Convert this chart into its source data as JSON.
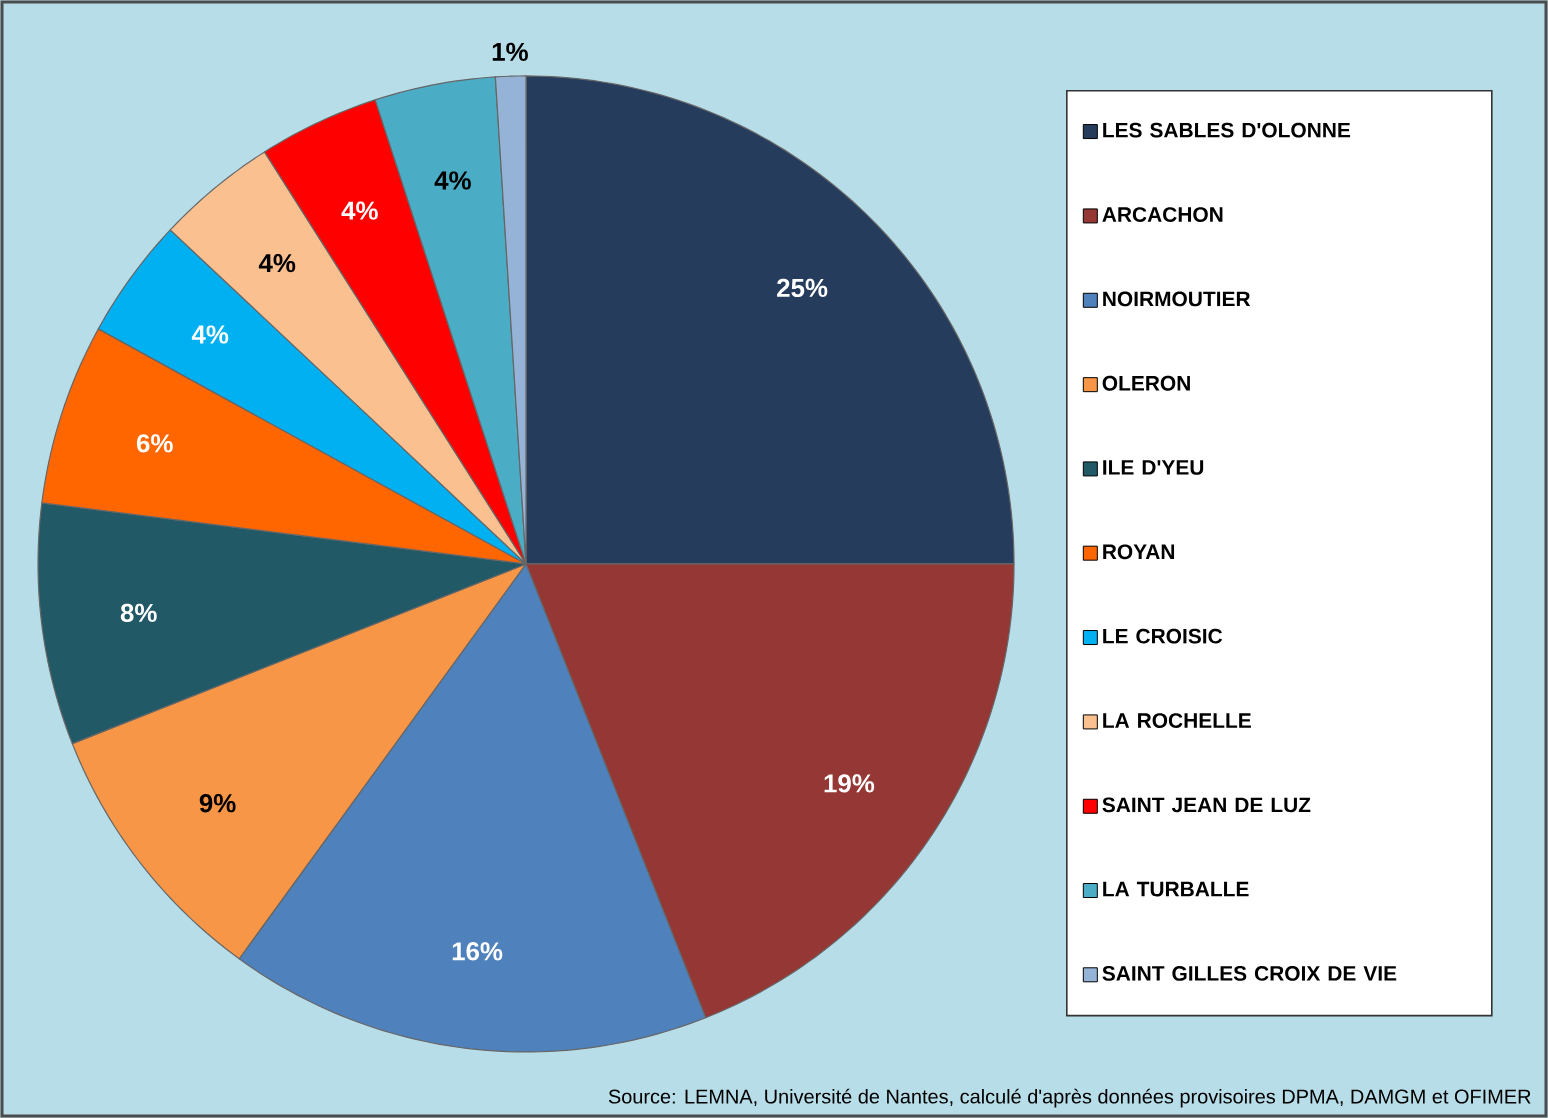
{
  "chart_data": {
    "type": "pie",
    "categories": [
      "LES SABLES D'OLONNE",
      "ARCACHON",
      "NOIRMOUTIER",
      "OLERON",
      "ILE D'YEU",
      "ROYAN",
      "LE CROISIC",
      "LA ROCHELLE",
      "SAINT JEAN DE LUZ",
      "LA TURBALLE",
      "SAINT GILLES CROIX DE VIE"
    ],
    "values": [
      25,
      19,
      16,
      9,
      8,
      6,
      4,
      4,
      4,
      4,
      1
    ],
    "value_labels": [
      "25%",
      "19%",
      "16%",
      "9%",
      "8%",
      "6%",
      "4%",
      "4%",
      "4%",
      "4%",
      "1%"
    ],
    "colors": [
      "#253C5C",
      "#953735",
      "#4F81BD",
      "#F79646",
      "#215967",
      "#FF6600",
      "#00B0F0",
      "#FAC090",
      "#FF0000",
      "#4BACC6",
      "#95B3D7"
    ],
    "legend": "right",
    "annotations": [
      "Source: LEMNA, Université de Nantes, calculé d'après données provisoires DPMA, DAMGM et OFIMER"
    ]
  }
}
